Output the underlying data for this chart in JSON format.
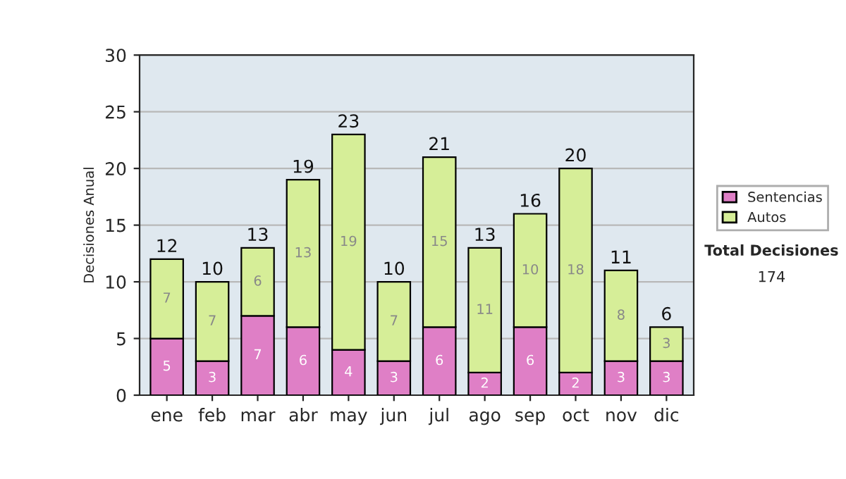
{
  "chart_data": {
    "type": "bar",
    "stacked": true,
    "ylabel": "Decisiones Anual",
    "categories": [
      "ene",
      "feb",
      "mar",
      "abr",
      "may",
      "jun",
      "jul",
      "ago",
      "sep",
      "oct",
      "nov",
      "dic"
    ],
    "series": [
      {
        "name": "Sentencias",
        "color": "#df7fc6",
        "values": [
          5,
          3,
          7,
          6,
          4,
          3,
          6,
          2,
          6,
          2,
          3,
          3
        ]
      },
      {
        "name": "Autos",
        "color": "#d6ee98",
        "values": [
          7,
          7,
          6,
          13,
          19,
          7,
          15,
          11,
          10,
          18,
          8,
          3
        ]
      }
    ],
    "ylim": [
      0,
      30
    ],
    "yticks": [
      0,
      5,
      10,
      15,
      20,
      25,
      30
    ],
    "grid": "y",
    "data_labels": true,
    "totals": [
      "12",
      "10",
      "13",
      "19",
      "23",
      "10",
      "21",
      "13",
      "16",
      "20",
      "11",
      "6"
    ],
    "legend": "right",
    "annotations": [
      "Total Decisiones",
      "174"
    ]
  }
}
